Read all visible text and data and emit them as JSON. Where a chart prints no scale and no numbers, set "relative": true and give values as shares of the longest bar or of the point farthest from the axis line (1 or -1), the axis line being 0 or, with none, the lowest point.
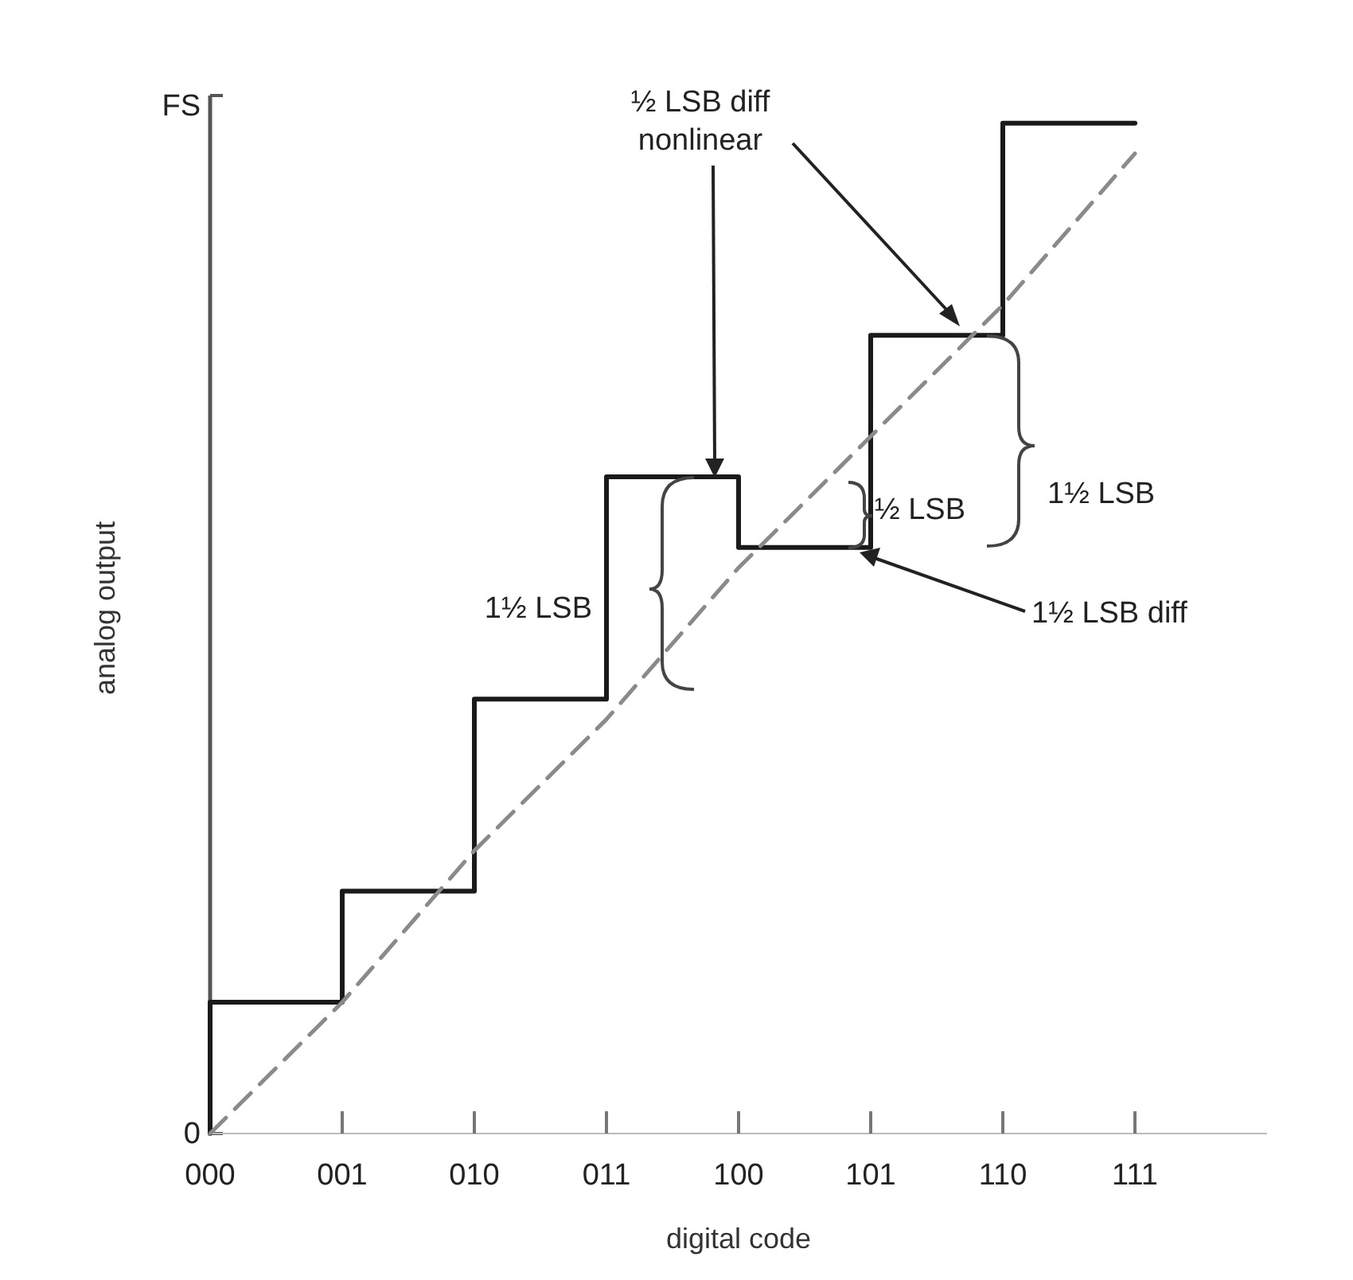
{
  "chart_data": {
    "type": "step",
    "xlabel": "digital code",
    "ylabel": "analog output",
    "relative": true,
    "categories": [
      "000",
      "001",
      "010",
      "011",
      "100",
      "101",
      "110",
      "111"
    ],
    "marker": "none",
    "series": [
      {
        "color": "#1a1a1a",
        "line_style": "solid",
        "values": [
          0,
          0.13,
          0.24,
          0.43,
          0.65,
          0.58,
          0.79,
          1
        ]
      },
      {
        "type": "line",
        "color": "#8a8a8a",
        "line_style": "dashed",
        "values": [
          0,
          0.13,
          0.28,
          0.41,
          0.56,
          0.69,
          0.82,
          0.97
        ]
      }
    ],
    "annotations": [
      "½ LSB diff nonlinear",
      "1½ LSB",
      "½ LSB",
      "1½ LSB",
      "1½ LSB diff",
      "0",
      "FS"
    ]
  }
}
